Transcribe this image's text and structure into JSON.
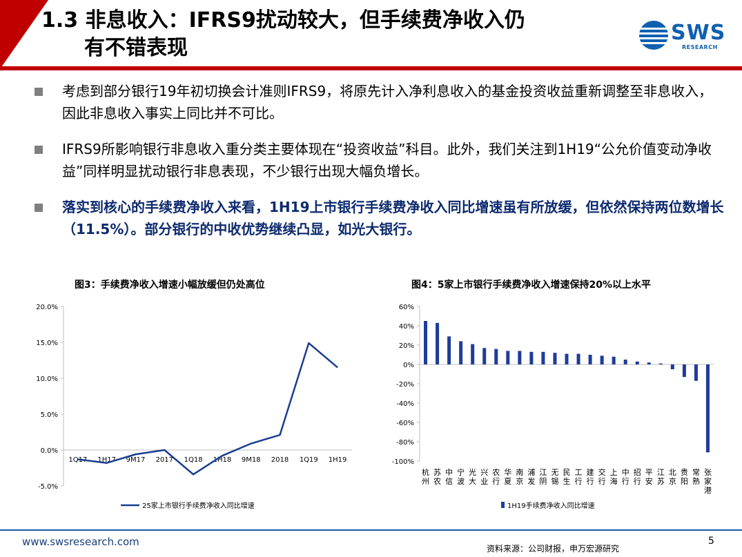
{
  "title": {
    "line1": "1.3 非息收入：IFRS9扰动较大，但手续费净收入仍",
    "line2": "有不错表现"
  },
  "logo": {
    "text": "SWS",
    "sub": "RESEARCH",
    "color": "#0f5fb0"
  },
  "bullets": [
    {
      "text": "考虑到部分银行19年初切换会计准则IFRS9，将原先计入净利息收入的基金投资收益重新调整至非息收入，因此非息收入事实上同比并不可比。",
      "bold": false
    },
    {
      "text": "IFRS9所影响银行非息收入重分类主要体现在“投资收益”科目。此外，我们关注到1H19“公允价值变动净收益”同样明显扰动银行非息表现，不少银行出现大幅负增长。",
      "bold": false
    },
    {
      "text": "落实到核心的手续费净收入来看，1H19上市银行手续费净收入同比增速虽有所放缓，但依然保持两位数增长（11.5%）。部分银行的中收优势继续凸显，如光大银行。",
      "bold": true
    }
  ],
  "chart_data": [
    {
      "type": "line",
      "title": "图3：手续费净收入增速小幅放缓但仍处高位",
      "categories": [
        "1Q17",
        "1H17",
        "9M17",
        "2017",
        "1Q18",
        "1H18",
        "9M18",
        "2018",
        "1Q19",
        "1H19"
      ],
      "series": [
        {
          "name": "25家上市银行手续费净收入同比增速",
          "values": [
            -1.3,
            -1.8,
            -0.6,
            0.0,
            -3.4,
            -0.8,
            0.9,
            2.1,
            14.9,
            11.5
          ]
        }
      ],
      "y_ticks": [
        "20.0%",
        "15.0%",
        "10.0%",
        "5.0%",
        "0.0%",
        "-5.0%"
      ],
      "ylim": [
        -5,
        20
      ],
      "color": "#1a3d8f",
      "legend": "bottom"
    },
    {
      "type": "bar",
      "title": "图4：5家上市银行手续费净收入增速保持20%以上水平",
      "categories": [
        "杭州",
        "苏农",
        "中信",
        "宁波",
        "光大",
        "兴业",
        "农行",
        "华夏",
        "南京",
        "浦发",
        "江阴",
        "无锡",
        "民生",
        "工行",
        "建行",
        "交行",
        "上海",
        "中行",
        "招行",
        "平安",
        "江苏",
        "北京",
        "贵阳",
        "常熟",
        "张家港"
      ],
      "series": [
        {
          "name": "1H19手续费净收入同比增速",
          "values": [
            45,
            43,
            29,
            24,
            21,
            17,
            16,
            14,
            14,
            13,
            13,
            12,
            11,
            11,
            10,
            9,
            8,
            5,
            3,
            2,
            1,
            -5,
            -13,
            -17,
            -91
          ]
        }
      ],
      "y_ticks": [
        "60%",
        "40%",
        "20%",
        "0%",
        "-20%",
        "-40%",
        "-60%",
        "-80%",
        "-100%"
      ],
      "ylim": [
        -100,
        60
      ],
      "color": "#1f3c99",
      "legend": "bottom"
    }
  ],
  "footer": {
    "url": "www.swsresearch.com",
    "source": "资料来源：公司财报，申万宏源研究",
    "page": "5"
  }
}
